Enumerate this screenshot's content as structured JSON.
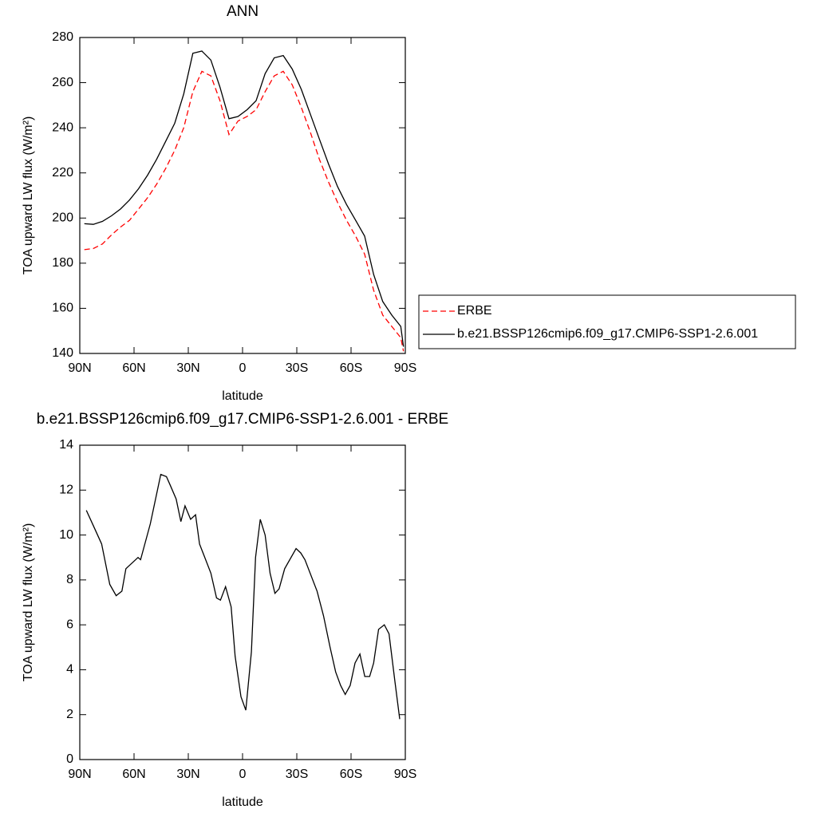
{
  "chart_data": [
    {
      "type": "line",
      "title": "ANN",
      "x_label": "latitude",
      "y_label": "TOA upward LW flux (W/m²)",
      "x": [
        87.5,
        82.5,
        77.5,
        72.5,
        67.5,
        62.5,
        57.5,
        52.5,
        47.5,
        42.5,
        37.5,
        32.5,
        27.5,
        22.5,
        17.5,
        12.5,
        7.5,
        2.5,
        -2.5,
        -7.5,
        -12.5,
        -17.5,
        -22.5,
        -27.5,
        -32.5,
        -37.5,
        -42.5,
        -47.5,
        -52.5,
        -57.5,
        -62.5,
        -67.5,
        -72.5,
        -77.5,
        -82.5,
        -87.5,
        -89
      ],
      "series": [
        {
          "name": "ERBE",
          "color": "#ff0000",
          "dashed": true,
          "values": [
            186,
            186.5,
            188.5,
            192.5,
            196,
            199,
            204,
            209,
            215,
            222,
            230,
            240,
            256,
            265,
            263,
            252,
            237,
            243,
            245,
            248,
            256,
            263,
            265,
            259,
            249,
            238,
            226,
            216,
            207,
            199,
            192,
            184,
            168,
            157,
            152,
            147,
            141
          ]
        },
        {
          "name": "b.e21.BSSP126cmip6.f09_g17.CMIP6-SSP1-2.6.001",
          "color": "#000000",
          "dashed": false,
          "values": [
            197.5,
            197.2,
            198.5,
            201,
            204,
            208,
            213,
            219,
            226,
            234,
            242,
            255,
            273,
            274,
            270,
            258,
            244,
            245,
            248,
            252,
            264,
            271,
            272,
            266,
            257,
            246,
            235,
            224,
            214,
            206,
            199,
            192,
            175,
            163,
            157,
            152,
            143
          ]
        }
      ],
      "xlim": [
        90,
        -90
      ],
      "xticks": [
        {
          "value": 90,
          "label": "90N"
        },
        {
          "value": 60,
          "label": "60N"
        },
        {
          "value": 30,
          "label": "30N"
        },
        0,
        {
          "value": -30,
          "label": "30S"
        },
        {
          "value": -60,
          "label": "60S"
        },
        {
          "value": -90,
          "label": "90S"
        }
      ],
      "ylim": [
        140,
        280
      ],
      "yticks": [
        140,
        160,
        180,
        200,
        220,
        240,
        260,
        280
      ],
      "legend": "right"
    },
    {
      "type": "line",
      "title": "b.e21.BSSP126cmip6.f09_g17.CMIP6-SSP1-2.6.001 - ERBE",
      "x_label": "latitude",
      "y_label": "TOA upward LW flux (W/m²)",
      "x": [
        86.4,
        82.4,
        77.9,
        73.4,
        69.9,
        66.7,
        64.5,
        57.8,
        56.4,
        51.0,
        45.2,
        42.1,
        39.9,
        36.7,
        34.1,
        31.8,
        28.7,
        26.0,
        23.8,
        17.5,
        14.4,
        12.2,
        9.4,
        6.3,
        4.1,
        0.9,
        -1.8,
        -4.9,
        -7.2,
        -9.8,
        -12.5,
        -15.2,
        -17.9,
        -20.2,
        -23.3,
        -29.6,
        -32.2,
        -34.5,
        -41.2,
        -44.8,
        -48.4,
        -51.5,
        -54.2,
        -56.8,
        -59.5,
        -62.2,
        -64.9,
        -67.6,
        -70.3,
        -72.5,
        -75.2,
        -78.4,
        -81.0,
        -84.2,
        -86.9
      ],
      "values": [
        11.1,
        10.4,
        9.6,
        7.8,
        7.3,
        7.5,
        8.5,
        9.0,
        8.9,
        10.5,
        12.7,
        12.6,
        12.2,
        11.6,
        10.6,
        11.3,
        10.7,
        10.9,
        9.6,
        8.3,
        7.2,
        7.1,
        7.7,
        6.8,
        4.6,
        2.8,
        2.2,
        4.8,
        9.0,
        10.7,
        10.0,
        8.3,
        7.4,
        7.6,
        8.5,
        9.4,
        9.2,
        8.9,
        7.5,
        6.4,
        5.0,
        3.9,
        3.3,
        2.9,
        3.3,
        4.3,
        4.7,
        3.7,
        3.7,
        4.3,
        5.8,
        6.0,
        5.6,
        3.5,
        1.8
      ],
      "color": "#000000",
      "xlim": [
        90,
        -90
      ],
      "xticks": [
        {
          "value": 90,
          "label": "90N"
        },
        {
          "value": 60,
          "label": "60N"
        },
        {
          "value": 30,
          "label": "30N"
        },
        0,
        {
          "value": -30,
          "label": "30S"
        },
        {
          "value": -60,
          "label": "60S"
        },
        {
          "value": -90,
          "label": "90S"
        }
      ],
      "ylim": [
        0,
        14
      ],
      "yticks": [
        0,
        2,
        4,
        6,
        8,
        10,
        12,
        14
      ]
    }
  ]
}
